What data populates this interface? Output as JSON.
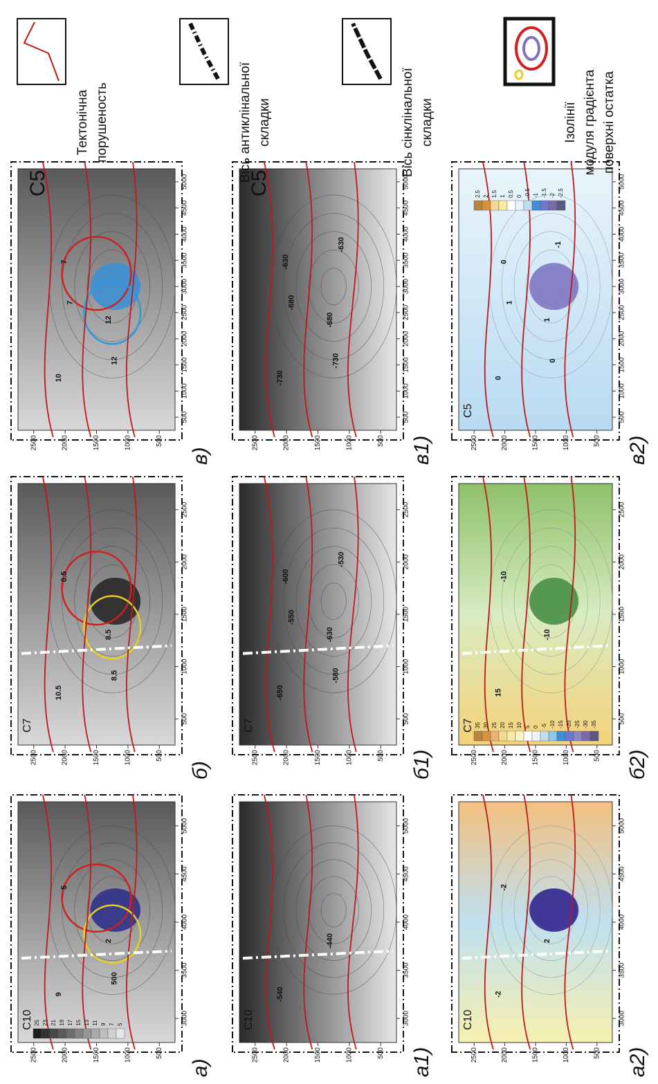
{
  "panels": [
    {
      "label": "а)",
      "layer": "C10",
      "xticks": [
        3000,
        3500,
        4000,
        4500,
        5000
      ],
      "yticks": [
        2500,
        2000,
        1500,
        1000,
        500
      ],
      "contours": [
        "9",
        "2",
        "5",
        "500"
      ],
      "colorbar": [
        "25",
        "23",
        "21",
        "19",
        "17",
        "15",
        "13",
        "11",
        "9",
        "7",
        "5"
      ]
    },
    {
      "label": "б)",
      "layer": "C7",
      "xticks": [
        500,
        1000,
        1500,
        2000,
        2500
      ],
      "yticks": [
        2500,
        2000,
        1500,
        1000,
        500
      ],
      "contours": [
        "10.5",
        "8.5",
        "0.5",
        "8.5"
      ]
    },
    {
      "label": "в)",
      "layer": "C5",
      "xticks": [
        500,
        1000,
        1500,
        2000,
        2500,
        3000,
        3500,
        4000,
        4500,
        5000
      ],
      "yticks": [
        2500,
        2000,
        1500,
        1000,
        500
      ],
      "contours": [
        "10",
        "12",
        "7",
        "12",
        "7"
      ]
    },
    {
      "label": "а1)",
      "layer": "C10",
      "xticks": [
        3000,
        3500,
        4000,
        4500,
        5000
      ],
      "yticks": [
        2500,
        2000,
        1500,
        1000,
        500
      ],
      "contours": [
        "-540",
        "-440"
      ]
    },
    {
      "label": "б1)",
      "layer": "C7",
      "xticks": [
        500,
        1000,
        1500,
        2000,
        2500
      ],
      "yticks": [
        2500,
        2000,
        1500,
        1000,
        500
      ],
      "contours": [
        "-650",
        "-630",
        "-600",
        "-580",
        "-550",
        "-530"
      ]
    },
    {
      "label": "в1)",
      "layer": "C5",
      "xticks": [
        500,
        1000,
        1500,
        2000,
        2500,
        3000,
        3500,
        4000,
        4500,
        5000
      ],
      "yticks": [
        2500,
        2000,
        1500,
        1000,
        500
      ],
      "contours": [
        "-730",
        "-680",
        "-630",
        "-730",
        "-680",
        "-630"
      ]
    },
    {
      "label": "а2)",
      "layer": "C10",
      "xticks": [
        3000,
        3500,
        4000,
        4500,
        5000
      ],
      "yticks": [
        2500,
        2000,
        1500,
        1000,
        500
      ],
      "contours": [
        "-2",
        "2",
        "-2"
      ]
    },
    {
      "label": "б2)",
      "layer": "C7",
      "xticks": [
        500,
        1000,
        1500,
        2000,
        2500
      ],
      "yticks": [
        2500,
        2000,
        1500,
        1000,
        500
      ],
      "contours": [
        "15",
        "-10",
        "-10"
      ],
      "colorbar": [
        "35",
        "30",
        "25",
        "20",
        "15",
        "10",
        "5",
        "0",
        "-5",
        "-10",
        "-15",
        "-20",
        "-25",
        "-30",
        "-35"
      ]
    },
    {
      "label": "в2)",
      "layer": "C5",
      "xticks": [
        500,
        1000,
        1500,
        2000,
        2500,
        3000,
        3500,
        4000,
        4500,
        5000
      ],
      "yticks": [
        2500,
        2000,
        1500,
        1000,
        500
      ],
      "contours": [
        "0",
        "1",
        "0",
        "0",
        "1",
        "-1"
      ],
      "colorbar": [
        "2.5",
        "2",
        "1.5",
        "1",
        "0.5",
        "0",
        "-0.5",
        "-1",
        "-1.5",
        "-2",
        "-2.5"
      ]
    }
  ],
  "legend": [
    {
      "lines": [
        "Тектонічна",
        "порушеность"
      ]
    },
    {
      "lines": [
        "Вісь антиклінальної",
        "складки"
      ]
    },
    {
      "lines": [
        "Вісь сінклінальної",
        "складки"
      ]
    },
    {
      "lines": [
        "Ізолінії",
        "модуля градієнта",
        "поверхні остатка"
      ]
    }
  ]
}
